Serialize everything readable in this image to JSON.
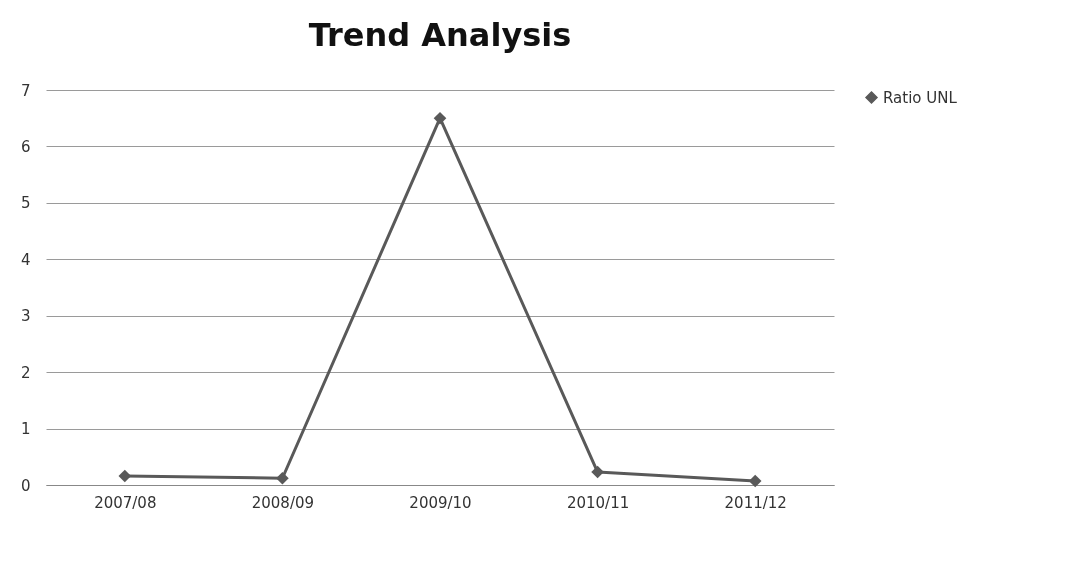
{
  "chart_data": {
    "type": "line",
    "title": "Trend Analysis",
    "categories": [
      "2007/08",
      "2008/09",
      "2009/10",
      "2010/11",
      "2011/12"
    ],
    "series": [
      {
        "name": "Ratio UNL",
        "color": "#595959",
        "values": [
          0.16,
          0.12,
          6.5,
          0.23,
          0.07
        ]
      }
    ],
    "ylim": [
      0,
      7
    ],
    "yticks": [
      0,
      1,
      2,
      3,
      4,
      5,
      6,
      7
    ],
    "grid": "y",
    "legend": "right",
    "marker": "diamond",
    "line_style": "solid"
  }
}
